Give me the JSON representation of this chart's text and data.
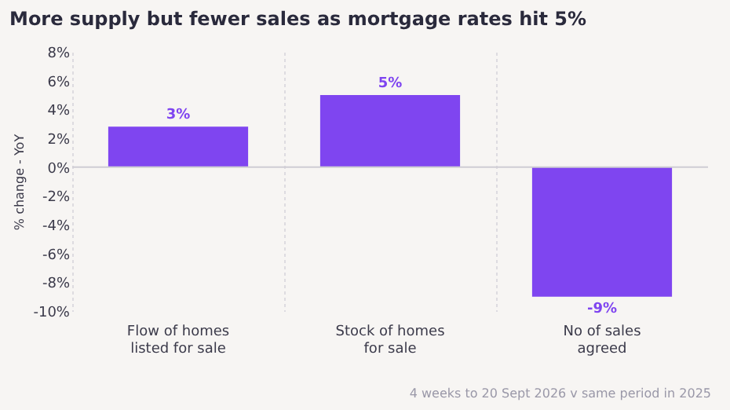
{
  "chart_data": {
    "type": "bar",
    "title": "More supply but fewer sales as mortgage rates hit 5%",
    "ylabel": "% change - YoY",
    "categories": [
      "Flow of homes listed for sale",
      "Stock of homes for sale",
      "No of sales agreed"
    ],
    "values": [
      2.8,
      5,
      -9
    ],
    "color": "#7f45f0",
    "value_labels": [
      "3%",
      "5%",
      "-9%"
    ],
    "ylim": [
      -10,
      8
    ],
    "yticks": [
      {
        "value": -10,
        "label": "-10%"
      },
      {
        "value": -8,
        "label": "-8%"
      },
      {
        "value": -6,
        "label": "-6%"
      },
      {
        "value": -4,
        "label": "-4%"
      },
      {
        "value": -2,
        "label": "-2%"
      },
      {
        "value": 0,
        "label": "0%"
      },
      {
        "value": 2,
        "label": "2%"
      },
      {
        "value": 4,
        "label": "4%"
      },
      {
        "value": 6,
        "label": "6%"
      },
      {
        "value": 8,
        "label": "8%"
      }
    ],
    "grid": "x",
    "ref_lines": [
      {
        "axis": "y",
        "value": 0,
        "color": "#cfcdd4"
      }
    ],
    "annotations": [
      "4 weeks to 20 Sept 2026 v same period in 2025"
    ]
  }
}
